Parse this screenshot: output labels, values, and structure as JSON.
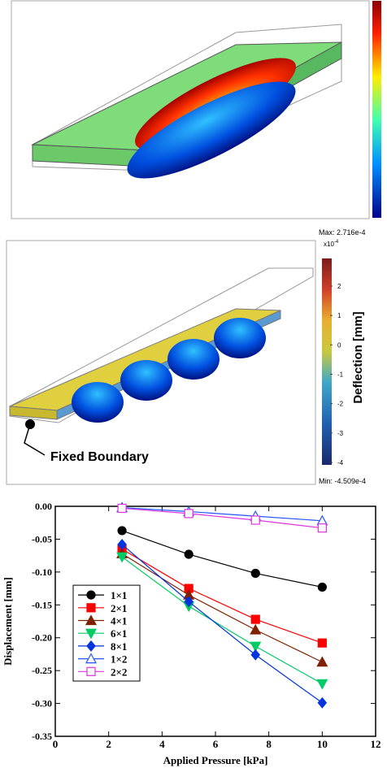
{
  "panel_b": {
    "max_label": "Max: 2.716e-4",
    "exponent_base": "x10",
    "exponent_power": "-4",
    "colorbar_ticks": [
      "2",
      "1",
      "0",
      "-1",
      "-2",
      "-3",
      "-4"
    ],
    "colorbar_label": "Deflection [mm]",
    "min_label": "Min: -4.509e-4",
    "annotation": "Fixed Boundary"
  },
  "chart_data": {
    "type": "line",
    "x_label": "Applied Pressure [kPa]",
    "y_label": "Displacement [mm]",
    "x": [
      2.5,
      5,
      7.5,
      10
    ],
    "xlim": [
      0,
      12
    ],
    "xticks": [
      0,
      2,
      4,
      6,
      8,
      10,
      12
    ],
    "ylim": [
      -0.35,
      0
    ],
    "yticks": [
      {
        "value": -0.35,
        "label": "-0.35"
      },
      {
        "value": -0.3,
        "label": "-0.30"
      },
      {
        "value": -0.25,
        "label": "-0.25"
      },
      {
        "value": -0.2,
        "label": "-0.20"
      },
      {
        "value": -0.15,
        "label": "-0.15"
      },
      {
        "value": -0.1,
        "label": "-0.10"
      },
      {
        "value": -0.05,
        "label": "-0.05"
      },
      {
        "value": 0,
        "label": "0.00"
      }
    ],
    "legend": "lower left",
    "series": [
      {
        "name": "1×1",
        "color": "#000000",
        "marker": "circle",
        "filled": true,
        "values": [
          -0.037,
          -0.073,
          -0.102,
          -0.123
        ]
      },
      {
        "name": "2×1",
        "color": "#ff0000",
        "marker": "square",
        "filled": true,
        "values": [
          -0.065,
          -0.125,
          -0.172,
          -0.208
        ]
      },
      {
        "name": "4×1",
        "color": "#802000",
        "marker": "triangle-up",
        "filled": true,
        "values": [
          -0.072,
          -0.135,
          -0.188,
          -0.237
        ]
      },
      {
        "name": "6×1",
        "color": "#00cc66",
        "marker": "triangle-down",
        "filled": true,
        "values": [
          -0.077,
          -0.152,
          -0.213,
          -0.27
        ]
      },
      {
        "name": "8×1",
        "color": "#0033dd",
        "marker": "diamond",
        "filled": true,
        "values": [
          -0.058,
          -0.145,
          -0.226,
          -0.299
        ]
      },
      {
        "name": "1×2",
        "color": "#2255ff",
        "marker": "triangle-up",
        "filled": false,
        "values": [
          -0.002,
          -0.008,
          -0.015,
          -0.022
        ]
      },
      {
        "name": "2×2",
        "color": "#dd33dd",
        "marker": "square",
        "filled": false,
        "values": [
          -0.003,
          -0.011,
          -0.021,
          -0.033
        ]
      }
    ]
  }
}
